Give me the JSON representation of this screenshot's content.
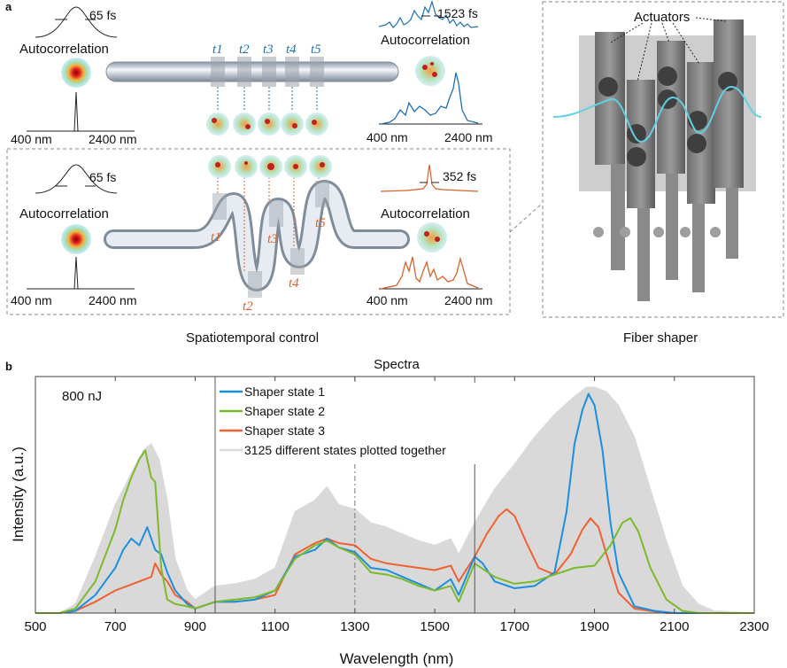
{
  "panel_a": {
    "label": "a",
    "top": {
      "pulse_width": "65 fs",
      "autocorrelation_label": "Autocorrelation",
      "spectrum_low": "400 nm",
      "spectrum_high": "2400 nm",
      "time_labels": [
        "t1",
        "t2",
        "t3",
        "t4",
        "t5"
      ],
      "out_pulse_width": "1523 fs",
      "out_autocorrelation_label": "Autocorrelation",
      "out_spectrum_low": "400 nm",
      "out_spectrum_high": "2400 nm"
    },
    "bottom": {
      "pulse_width": "65 fs",
      "autocorrelation_label": "Autocorrelation",
      "spectrum_low": "400 nm",
      "spectrum_high": "2400 nm",
      "time_labels": [
        "t1",
        "t2",
        "t3",
        "t4",
        "t5"
      ],
      "out_pulse_width": "352 fs",
      "out_autocorrelation_label": "Autocorrelation",
      "out_spectrum_low": "400 nm",
      "out_spectrum_high": "2400 nm",
      "caption": "Spatiotemporal control"
    },
    "shaper": {
      "actuators_label": "Actuators",
      "caption": "Fiber shaper"
    },
    "colors": {
      "blue": "#1f6fb4",
      "orange": "#d9622b",
      "fiber": "#b9c4cf"
    }
  },
  "panel_b": {
    "label": "b",
    "energy_label": "800 nJ"
  },
  "chart_data": {
    "type": "line",
    "title": "Spectra",
    "xlabel": "Wavelength (nm)",
    "ylabel": "Intensity (a.u.)",
    "xlim": [
      500,
      2300
    ],
    "ylim": [
      0,
      1.0
    ],
    "xticks": [
      "500",
      "700",
      "900",
      "1100",
      "1300",
      "1500",
      "1700",
      "1900",
      "2100",
      "2300"
    ],
    "vertical_lines": [
      950,
      1300,
      1600
    ],
    "dashed_vertical_line": 1300,
    "legend_position": "top-center",
    "series": [
      {
        "name": "Shaper state 1",
        "color": "#1b8fe0",
        "x": [
          500,
          560,
          600,
          650,
          700,
          720,
          740,
          760,
          780,
          800,
          815,
          830,
          850,
          880,
          900,
          950,
          1000,
          1050,
          1100,
          1150,
          1200,
          1230,
          1260,
          1300,
          1340,
          1380,
          1420,
          1460,
          1500,
          1540,
          1560,
          1600,
          1620,
          1650,
          1700,
          1750,
          1800,
          1830,
          1850,
          1870,
          1885,
          1900,
          1920,
          1940,
          1960,
          2000,
          2050,
          2100,
          2150,
          2200,
          2300
        ],
        "y": [
          0,
          0,
          0.01,
          0.08,
          0.2,
          0.28,
          0.33,
          0.3,
          0.38,
          0.28,
          0.26,
          0.18,
          0.1,
          0.04,
          0.02,
          0.05,
          0.05,
          0.06,
          0.1,
          0.25,
          0.28,
          0.33,
          0.29,
          0.27,
          0.2,
          0.19,
          0.16,
          0.13,
          0.1,
          0.15,
          0.08,
          0.25,
          0.22,
          0.14,
          0.11,
          0.12,
          0.18,
          0.45,
          0.75,
          0.9,
          0.97,
          0.92,
          0.72,
          0.4,
          0.18,
          0.03,
          0.01,
          0,
          0,
          0,
          0
        ]
      },
      {
        "name": "Shaper state 2",
        "color": "#7cba2c",
        "x": [
          500,
          560,
          600,
          650,
          700,
          720,
          740,
          760,
          775,
          790,
          800,
          815,
          830,
          850,
          880,
          900,
          950,
          1000,
          1050,
          1100,
          1150,
          1200,
          1230,
          1260,
          1300,
          1340,
          1380,
          1420,
          1460,
          1500,
          1540,
          1560,
          1600,
          1650,
          1700,
          1750,
          1800,
          1850,
          1900,
          1940,
          1970,
          1990,
          2010,
          2040,
          2080,
          2120,
          2160,
          2200,
          2300
        ],
        "y": [
          0,
          0,
          0.02,
          0.14,
          0.37,
          0.5,
          0.6,
          0.68,
          0.72,
          0.6,
          0.58,
          0.2,
          0.06,
          0.04,
          0.03,
          0.02,
          0.05,
          0.06,
          0.07,
          0.1,
          0.24,
          0.3,
          0.32,
          0.29,
          0.26,
          0.18,
          0.17,
          0.15,
          0.12,
          0.1,
          0.12,
          0.05,
          0.22,
          0.16,
          0.13,
          0.14,
          0.17,
          0.2,
          0.21,
          0.3,
          0.4,
          0.42,
          0.36,
          0.2,
          0.06,
          0.01,
          0,
          0,
          0
        ]
      },
      {
        "name": "Shaper state 3",
        "color": "#f06030",
        "x": [
          500,
          560,
          600,
          650,
          700,
          730,
          760,
          790,
          800,
          815,
          830,
          850,
          880,
          900,
          950,
          1000,
          1050,
          1100,
          1150,
          1200,
          1230,
          1260,
          1300,
          1340,
          1380,
          1420,
          1460,
          1500,
          1540,
          1560,
          1600,
          1630,
          1660,
          1680,
          1700,
          1730,
          1760,
          1800,
          1840,
          1870,
          1890,
          1910,
          1930,
          1960,
          2000,
          2040,
          2080,
          2120,
          2200,
          2300
        ],
        "y": [
          0,
          0,
          0.01,
          0.05,
          0.1,
          0.12,
          0.14,
          0.16,
          0.22,
          0.17,
          0.14,
          0.08,
          0.05,
          0.02,
          0.05,
          0.05,
          0.06,
          0.08,
          0.26,
          0.31,
          0.33,
          0.31,
          0.3,
          0.24,
          0.22,
          0.21,
          0.2,
          0.19,
          0.21,
          0.14,
          0.25,
          0.35,
          0.43,
          0.46,
          0.43,
          0.31,
          0.2,
          0.17,
          0.26,
          0.37,
          0.42,
          0.38,
          0.26,
          0.09,
          0.02,
          0.01,
          0,
          0,
          0,
          0
        ]
      },
      {
        "name": "3125 different states plotted together",
        "color": "#d9d9d9",
        "x": [
          500,
          560,
          600,
          650,
          700,
          740,
          770,
          790,
          810,
          830,
          850,
          880,
          900,
          950,
          1000,
          1050,
          1100,
          1150,
          1200,
          1230,
          1260,
          1300,
          1340,
          1380,
          1420,
          1460,
          1500,
          1540,
          1560,
          1600,
          1650,
          1700,
          1750,
          1800,
          1850,
          1880,
          1900,
          1930,
          1960,
          2000,
          2040,
          2080,
          2120,
          2160,
          2200,
          2300
        ],
        "y": [
          0,
          0,
          0.04,
          0.25,
          0.48,
          0.62,
          0.72,
          0.75,
          0.68,
          0.5,
          0.24,
          0.1,
          0.06,
          0.12,
          0.13,
          0.15,
          0.2,
          0.45,
          0.5,
          0.56,
          0.48,
          0.46,
          0.4,
          0.38,
          0.35,
          0.32,
          0.3,
          0.33,
          0.26,
          0.4,
          0.55,
          0.66,
          0.78,
          0.88,
          0.96,
          1.0,
          1.0,
          0.98,
          0.92,
          0.78,
          0.55,
          0.32,
          0.12,
          0.04,
          0.01,
          0
        ]
      }
    ]
  }
}
